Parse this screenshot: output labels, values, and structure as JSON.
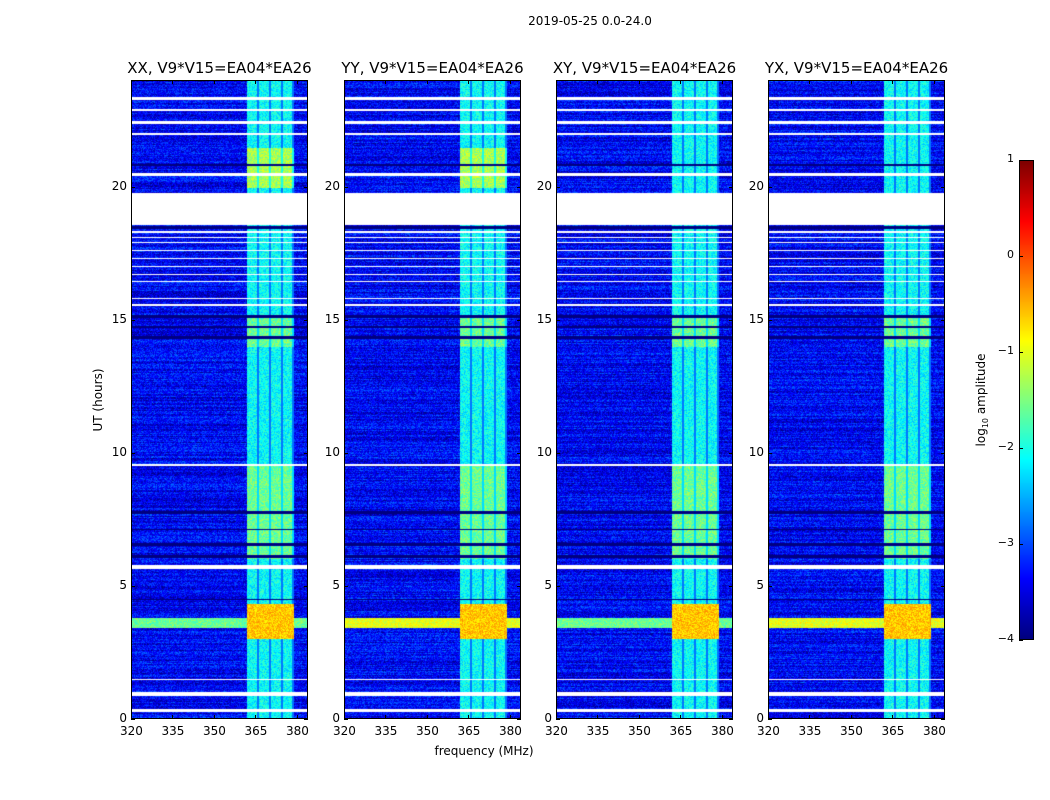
{
  "suptitle": "2019-05-25 0.0-24.0",
  "chart_data": {
    "type": "heatmap",
    "title": "2019-05-25 0.0-24.0",
    "xlabel": "frequency (MHz)",
    "ylabel": "UT (hours)",
    "xlim": [
      320,
      384
    ],
    "ylim": [
      0,
      24
    ],
    "xticks": [
      "320",
      "335",
      "350",
      "365",
      "380"
    ],
    "xtick_values": [
      320,
      335,
      350,
      365,
      380
    ],
    "yticks": [
      "0",
      "5",
      "10",
      "15",
      "20"
    ],
    "ytick_values": [
      0,
      5,
      10,
      15,
      20
    ],
    "panels": [
      {
        "title": "XX, V9*V15=EA04*EA26"
      },
      {
        "title": "YY, V9*V15=EA04*EA26"
      },
      {
        "title": "XY, V9*V15=EA04*EA26"
      },
      {
        "title": "YX, V9*V15=EA04*EA26"
      }
    ],
    "rfi_band_mhz": [
      362,
      379
    ],
    "strong_rfi_hours": [
      3.0,
      4.3
    ],
    "flagged_hours": [
      [
        0.25,
        0.35
      ],
      [
        0.85,
        1.0
      ],
      [
        1.45,
        1.5
      ],
      [
        5.65,
        5.8
      ],
      [
        9.5,
        9.6
      ],
      [
        15.55,
        15.6
      ],
      [
        15.8,
        15.85
      ],
      [
        16.45,
        16.5
      ],
      [
        16.7,
        16.75
      ],
      [
        17.0,
        17.05
      ],
      [
        17.3,
        17.35
      ],
      [
        17.6,
        17.65
      ],
      [
        17.9,
        17.95
      ],
      [
        18.1,
        18.15
      ],
      [
        18.3,
        18.35
      ],
      [
        18.6,
        19.8
      ],
      [
        20.45,
        20.55
      ],
      [
        22.0,
        22.05
      ],
      [
        22.4,
        22.5
      ],
      [
        22.9,
        22.95
      ],
      [
        23.3,
        23.4
      ]
    ],
    "colorbar": {
      "label": "log10 amplitude",
      "range": [
        -4,
        1
      ],
      "ticks": [
        "1",
        "0",
        "−1",
        "−2",
        "−3",
        "−4"
      ],
      "tick_values": [
        1,
        0,
        -1,
        -2,
        -3,
        -4
      ],
      "colormap": "jet"
    }
  }
}
